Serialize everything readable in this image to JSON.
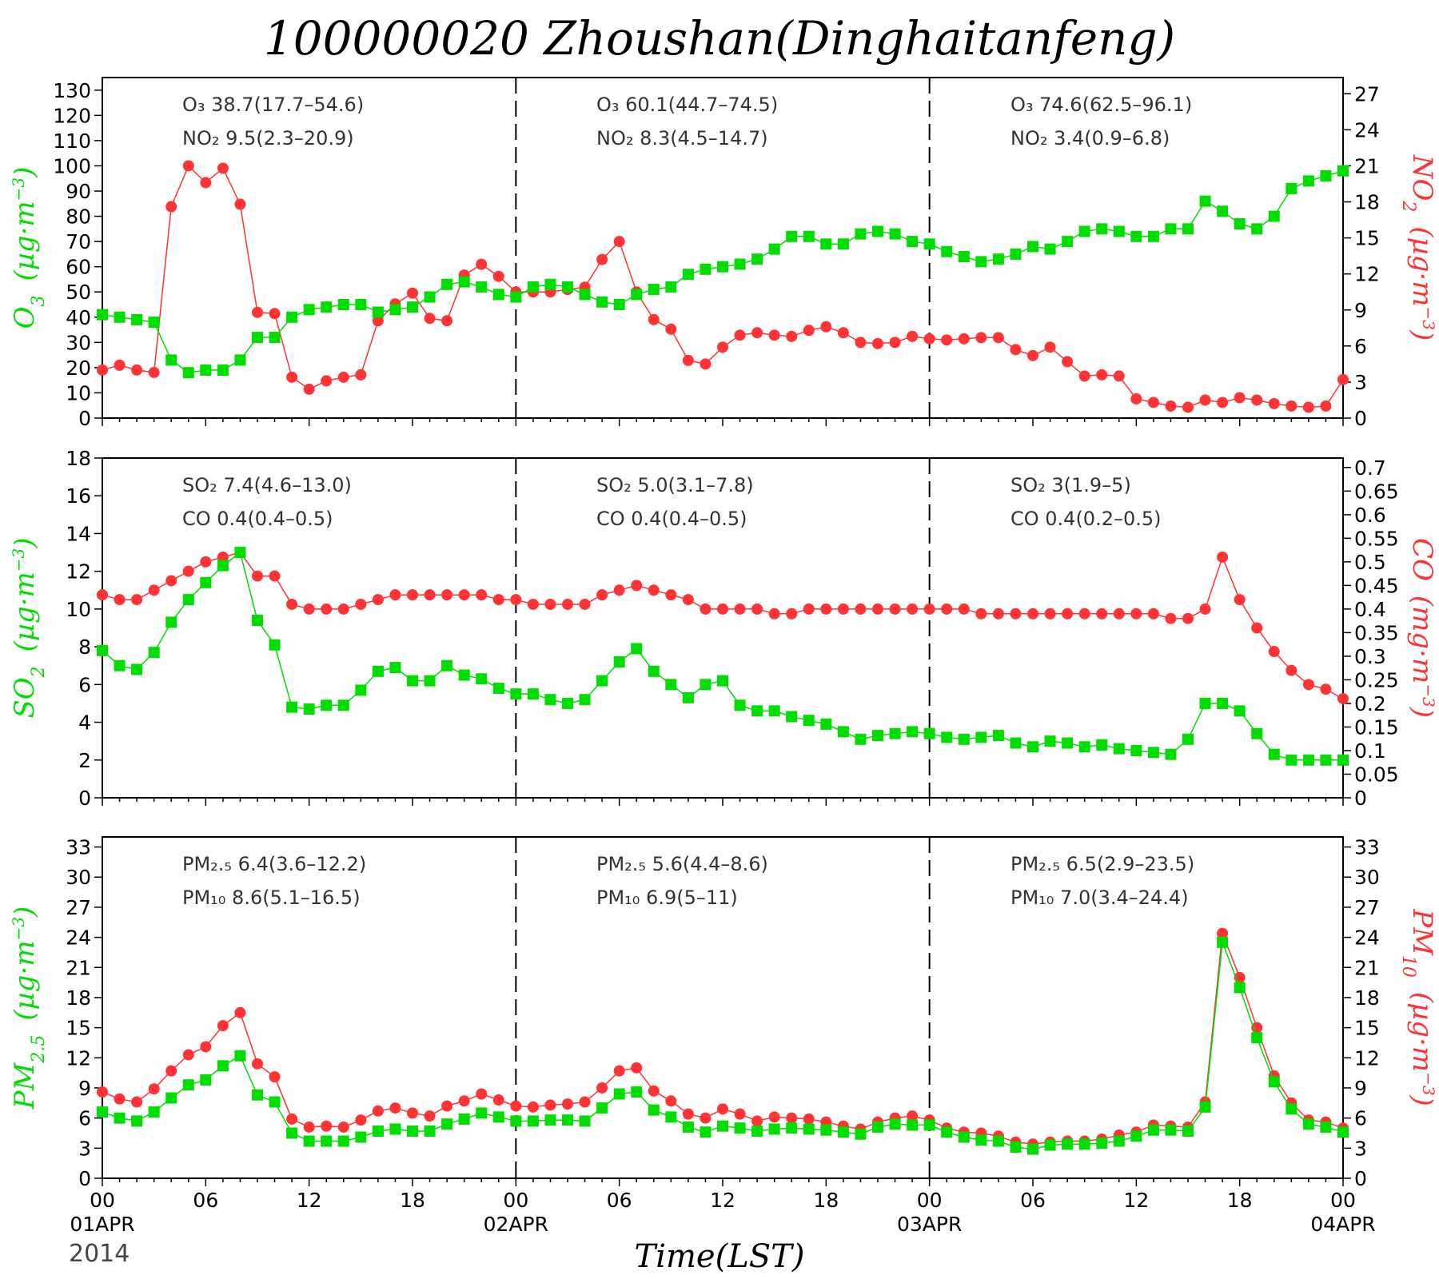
{
  "figure": {
    "title": "100000020 Zhoushan(Dinghaitanfeng)",
    "xlabel": "Time(LST)",
    "year": "2014",
    "x_tick_labels": [
      "00",
      "06",
      "12",
      "18",
      "00",
      "06",
      "12",
      "18",
      "00",
      "06",
      "12",
      "18",
      "00"
    ],
    "day_labels": [
      "01APR",
      "02APR",
      "03APR",
      "04APR"
    ],
    "colors": {
      "left_series": "#00dd00",
      "right_series": "#ff3333",
      "axes": "#000000",
      "annot_text": "#333333"
    }
  },
  "chart_data": [
    {
      "type": "line",
      "panel": "O3-NO2",
      "x": {
        "start": "2014-04-01 00:00",
        "end": "2014-04-04 00:00",
        "step_hours": 1
      },
      "left_axis": {
        "label": "O3 (µg·m⁻³)",
        "ylim": [
          0,
          135
        ],
        "ticks": [
          0,
          10,
          20,
          30,
          40,
          50,
          60,
          70,
          80,
          90,
          100,
          110,
          120,
          130
        ]
      },
      "right_axis": {
        "label": "NO2 (µg·m⁻³)",
        "ylim": [
          0,
          28.35
        ],
        "ticks": [
          0,
          3,
          6,
          9,
          12,
          15,
          18,
          21,
          24,
          27
        ]
      },
      "series": [
        {
          "name": "O3",
          "axis": "left",
          "marker": "square",
          "values": [
            41,
            40,
            39,
            38,
            23,
            18,
            19,
            19,
            23,
            32,
            32,
            40,
            43,
            44,
            45,
            45,
            42,
            43,
            44,
            48,
            53,
            54,
            52,
            49,
            48,
            52,
            53,
            52,
            49,
            46,
            45,
            49,
            51,
            52,
            57,
            59,
            60,
            61,
            63,
            67,
            72,
            72,
            69,
            69,
            73,
            74,
            73,
            70,
            69,
            66,
            64,
            62,
            63,
            65,
            68,
            67,
            70,
            74,
            75,
            74,
            72,
            72,
            75,
            75,
            86,
            82,
            77,
            75,
            80,
            91,
            94,
            96,
            98
          ]
        },
        {
          "name": "NO2",
          "axis": "right",
          "marker": "circle",
          "values": [
            4.0,
            4.4,
            4.0,
            3.8,
            17.6,
            21.0,
            19.6,
            20.8,
            17.8,
            8.8,
            8.7,
            3.4,
            2.4,
            3.1,
            3.4,
            3.6,
            8.1,
            9.5,
            10.4,
            8.3,
            8.1,
            11.9,
            12.8,
            11.8,
            10.5,
            10.5,
            10.5,
            10.7,
            10.9,
            13.2,
            14.7,
            10.5,
            8.2,
            7.4,
            4.8,
            4.5,
            5.9,
            6.9,
            7.1,
            6.9,
            6.8,
            7.3,
            7.6,
            7.1,
            6.3,
            6.2,
            6.3,
            6.8,
            6.6,
            6.5,
            6.6,
            6.7,
            6.7,
            5.7,
            5.2,
            5.9,
            4.7,
            3.5,
            3.6,
            3.5,
            1.6,
            1.3,
            1.0,
            0.9,
            1.5,
            1.3,
            1.7,
            1.5,
            1.2,
            1.0,
            0.9,
            1.0,
            3.2
          ]
        }
      ],
      "annotations": [
        {
          "line1": "O₃ 38.7(17.7–54.6)",
          "line2": "NO₂ 9.5(2.3–20.9)"
        },
        {
          "line1": "O₃ 60.1(44.7–74.5)",
          "line2": "NO₂ 8.3(4.5–14.7)"
        },
        {
          "line1": "O₃ 74.6(62.5–96.1)",
          "line2": "NO₂ 3.4(0.9–6.8)"
        }
      ]
    },
    {
      "type": "line",
      "panel": "SO2-CO",
      "x": {
        "start": "2014-04-01 00:00",
        "end": "2014-04-04 00:00",
        "step_hours": 1
      },
      "left_axis": {
        "label": "SO2 (µg·m⁻³)",
        "ylim": [
          0,
          18
        ],
        "ticks": [
          0,
          2,
          4,
          6,
          8,
          10,
          12,
          14,
          16,
          18
        ]
      },
      "right_axis": {
        "label": "CO (mg·m⁻³)",
        "ylim": [
          0,
          0.72
        ],
        "ticks": [
          0,
          0.05,
          0.1,
          0.15,
          0.2,
          0.25,
          0.3,
          0.35,
          0.4,
          0.45,
          0.5,
          0.55,
          0.6,
          0.65,
          0.7
        ]
      },
      "series": [
        {
          "name": "SO2",
          "axis": "left",
          "marker": "square",
          "values": [
            7.8,
            7.0,
            6.8,
            7.7,
            9.3,
            10.5,
            11.4,
            12.3,
            13.0,
            9.4,
            8.1,
            4.8,
            4.7,
            4.9,
            4.9,
            5.7,
            6.7,
            6.9,
            6.2,
            6.2,
            7.0,
            6.5,
            6.3,
            5.8,
            5.5,
            5.5,
            5.2,
            5.0,
            5.2,
            6.2,
            7.2,
            7.9,
            6.7,
            6.0,
            5.3,
            6.0,
            6.2,
            4.9,
            4.6,
            4.6,
            4.3,
            4.1,
            3.9,
            3.5,
            3.1,
            3.3,
            3.4,
            3.5,
            3.4,
            3.2,
            3.1,
            3.2,
            3.3,
            2.9,
            2.7,
            3.0,
            2.9,
            2.7,
            2.8,
            2.6,
            2.5,
            2.4,
            2.3,
            3.1,
            5.0,
            5.0,
            4.6,
            3.4,
            2.3,
            2.0,
            2.0,
            2.0,
            2.0
          ]
        },
        {
          "name": "CO",
          "axis": "right",
          "marker": "circle",
          "values": [
            0.43,
            0.42,
            0.42,
            0.44,
            0.46,
            0.48,
            0.5,
            0.51,
            0.52,
            0.47,
            0.47,
            0.41,
            0.4,
            0.4,
            0.4,
            0.41,
            0.42,
            0.43,
            0.43,
            0.43,
            0.43,
            0.43,
            0.43,
            0.42,
            0.42,
            0.41,
            0.41,
            0.41,
            0.41,
            0.43,
            0.44,
            0.45,
            0.44,
            0.43,
            0.42,
            0.4,
            0.4,
            0.4,
            0.4,
            0.39,
            0.39,
            0.4,
            0.4,
            0.4,
            0.4,
            0.4,
            0.4,
            0.4,
            0.4,
            0.4,
            0.4,
            0.39,
            0.39,
            0.39,
            0.39,
            0.39,
            0.39,
            0.39,
            0.39,
            0.39,
            0.39,
            0.39,
            0.38,
            0.38,
            0.4,
            0.51,
            0.42,
            0.36,
            0.31,
            0.27,
            0.24,
            0.23,
            0.21
          ]
        }
      ],
      "annotations": [
        {
          "line1": "SO₂ 7.4(4.6–13.0)",
          "line2": "CO 0.4(0.4–0.5)"
        },
        {
          "line1": "SO₂ 5.0(3.1–7.8)",
          "line2": "CO 0.4(0.4–0.5)"
        },
        {
          "line1": "SO₂ 3(1.9–5)",
          "line2": "CO 0.4(0.2–0.5)"
        }
      ]
    },
    {
      "type": "line",
      "panel": "PM2.5-PM10",
      "x": {
        "start": "2014-04-01 00:00",
        "end": "2014-04-04 00:00",
        "step_hours": 1
      },
      "left_axis": {
        "label": "PM2.5 (µg·m⁻³)",
        "ylim": [
          0,
          34
        ],
        "ticks": [
          0,
          3,
          6,
          9,
          12,
          15,
          18,
          21,
          24,
          27,
          30,
          33
        ]
      },
      "right_axis": {
        "label": "PM10 (µg·m⁻³)",
        "ylim": [
          0,
          34
        ],
        "ticks": [
          0,
          3,
          6,
          9,
          12,
          15,
          18,
          21,
          24,
          27,
          30,
          33
        ]
      },
      "series": [
        {
          "name": "PM2.5",
          "axis": "left",
          "marker": "square",
          "values": [
            6.6,
            6.0,
            5.7,
            6.6,
            8.0,
            9.3,
            9.8,
            11.2,
            12.2,
            8.3,
            7.6,
            4.5,
            3.7,
            3.7,
            3.7,
            4.1,
            4.7,
            4.9,
            4.7,
            4.7,
            5.4,
            5.9,
            6.5,
            6.1,
            5.7,
            5.7,
            5.8,
            5.8,
            5.7,
            7.0,
            8.4,
            8.6,
            6.8,
            6.1,
            5.1,
            4.6,
            5.2,
            5.0,
            4.7,
            4.9,
            5.0,
            4.9,
            4.8,
            4.6,
            4.4,
            5.1,
            5.4,
            5.3,
            5.3,
            4.6,
            4.1,
            3.8,
            3.7,
            3.1,
            2.9,
            3.3,
            3.4,
            3.4,
            3.5,
            3.7,
            4.2,
            4.8,
            4.8,
            4.7,
            7.1,
            23.5,
            19.0,
            14.0,
            9.6,
            6.9,
            5.4,
            5.1,
            4.6
          ]
        },
        {
          "name": "PM10",
          "axis": "right",
          "marker": "circle",
          "values": [
            8.6,
            7.9,
            7.6,
            8.9,
            10.7,
            12.3,
            13.1,
            15.2,
            16.5,
            11.4,
            10.1,
            5.9,
            5.1,
            5.2,
            5.1,
            5.8,
            6.7,
            7.0,
            6.5,
            6.2,
            7.2,
            7.7,
            8.4,
            7.8,
            7.2,
            7.1,
            7.3,
            7.4,
            7.6,
            9.0,
            10.7,
            11.0,
            8.7,
            7.7,
            6.4,
            6.0,
            6.9,
            6.4,
            5.7,
            6.1,
            6.0,
            5.9,
            5.6,
            5.2,
            4.9,
            5.6,
            6.0,
            6.2,
            5.8,
            5.0,
            4.6,
            4.5,
            4.2,
            3.6,
            3.4,
            3.6,
            3.7,
            3.7,
            3.9,
            4.3,
            4.6,
            5.3,
            5.2,
            5.1,
            7.6,
            24.4,
            20.0,
            15.0,
            10.2,
            7.5,
            5.8,
            5.6,
            5.0
          ]
        }
      ],
      "annotations": [
        {
          "line1": "PM₂.₅ 6.4(3.6–12.2)",
          "line2": "PM₁₀ 8.6(5.1–16.5)"
        },
        {
          "line1": "PM₂.₅ 5.6(4.4–8.6)",
          "line2": "PM₁₀ 6.9(5–11)"
        },
        {
          "line1": "PM₂.₅ 6.5(2.9–23.5)",
          "line2": "PM₁₀ 7.0(3.4–24.4)"
        }
      ]
    }
  ]
}
